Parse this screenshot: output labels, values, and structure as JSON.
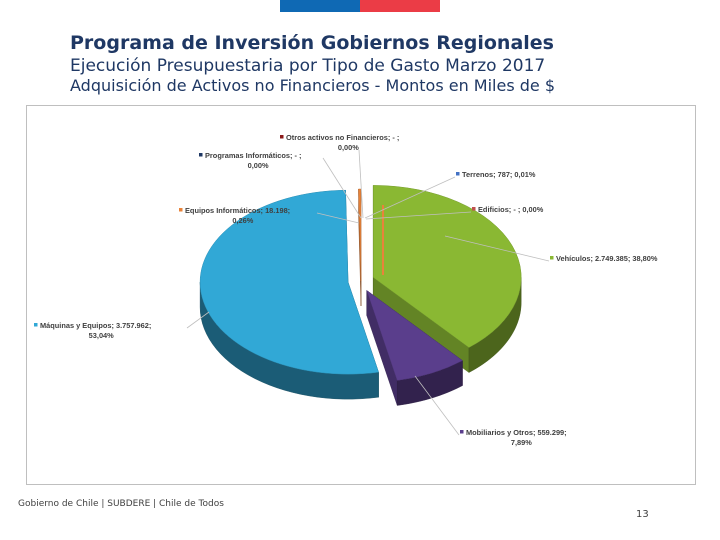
{
  "header": {
    "title": "Programa de Inversión Gobiernos Regionales",
    "subtitle": "Ejecución Presupuestaria por Tipo de Gasto Marzo 2017",
    "subtitle2": "Adquisición de Activos no Financieros - Montos en Miles de $"
  },
  "brand_colors": [
    "#0f69b4",
    "#eb3c46"
  ],
  "chart_data": {
    "type": "pie",
    "units": "Miles de $",
    "slices": [
      {
        "name": "Vehículos",
        "value_label": "2.749.385",
        "value": 2749385,
        "percent_label": "38,80%",
        "percent": 38.8,
        "color": "#8ab833",
        "line1": "Vehículos; 2.749.385; 38,80%",
        "line2": ""
      },
      {
        "name": "Mobiliarios y Otros",
        "value_label": "559.299",
        "value": 559299,
        "percent_label": "7,89%",
        "percent": 7.89,
        "color": "#5a3e8c",
        "line1": "Mobiliarios y Otros; 559.299;",
        "line2": "7,89%"
      },
      {
        "name": "Máquinas y Equipos",
        "value_label": "3.757.962",
        "value": 3757962,
        "percent_label": "53,04%",
        "percent": 53.04,
        "color": "#31a8d6",
        "line1": "Máquinas y Equipos; 3.757.962;",
        "line2": "53,04%"
      },
      {
        "name": "Equipos Informáticos",
        "value_label": "18.198",
        "value": 18198,
        "percent_label": "0,26%",
        "percent": 0.26,
        "color": "#e8833a",
        "line1": "Equipos Informáticos; 18.198;",
        "line2": "0,26%"
      },
      {
        "name": "Programas Informáticos",
        "value_label": "-",
        "value": 0,
        "percent_label": "0,00%",
        "percent": 0.0,
        "color": "#1f3864",
        "line1": "Programas Informáticos; -  ;",
        "line2": "0,00%"
      },
      {
        "name": "Otros activos no Financieros",
        "value_label": "-",
        "value": 0,
        "percent_label": "0,00%",
        "percent": 0.0,
        "color": "#8b1a1a",
        "line1": "Otros activos no Financieros; -  ;",
        "line2": "0,00%"
      },
      {
        "name": "Terrenos",
        "value_label": "787",
        "value": 787,
        "percent_label": "0,01%",
        "percent": 0.01,
        "color": "#4472c4",
        "line1": "Terrenos; 787; 0,01%",
        "line2": ""
      },
      {
        "name": "Edificios",
        "value_label": "-",
        "value": 0,
        "percent_label": "0,00%",
        "percent": 0.0,
        "color": "#c0504d",
        "line1": "Edificios; -  ; 0,00%",
        "line2": ""
      }
    ]
  },
  "footer": {
    "text": "Gobierno de Chile | SUBDERE | Chile de Todos",
    "page_number": "13"
  }
}
